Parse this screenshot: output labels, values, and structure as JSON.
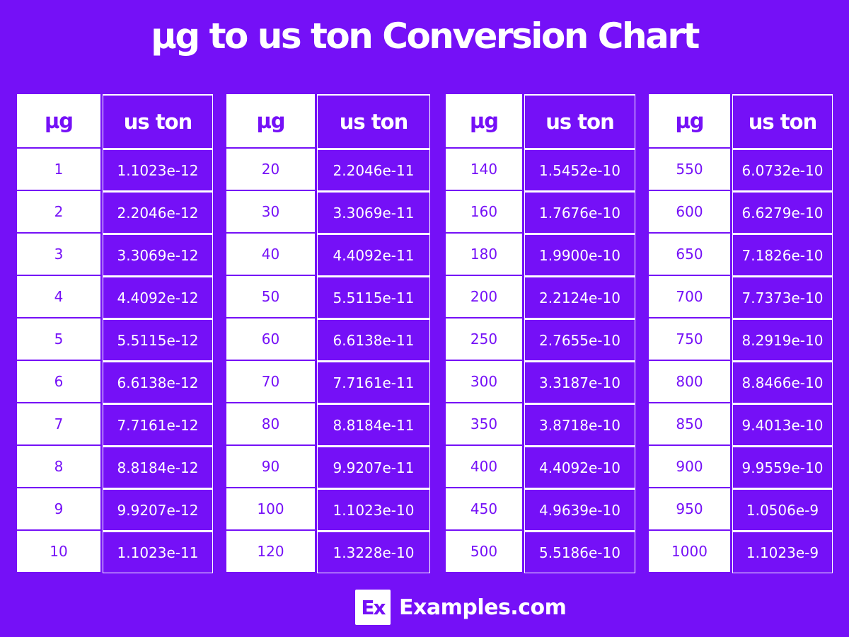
{
  "title": "µg to us ton Conversion Chart",
  "headers": {
    "from": "µg",
    "to": "us ton"
  },
  "tables": [
    {
      "rows": [
        {
          "ug": "1",
          "ton": "1.1023e-12"
        },
        {
          "ug": "2",
          "ton": "2.2046e-12"
        },
        {
          "ug": "3",
          "ton": "3.3069e-12"
        },
        {
          "ug": "4",
          "ton": "4.4092e-12"
        },
        {
          "ug": "5",
          "ton": "5.5115e-12"
        },
        {
          "ug": "6",
          "ton": "6.6138e-12"
        },
        {
          "ug": "7",
          "ton": "7.7161e-12"
        },
        {
          "ug": "8",
          "ton": "8.8184e-12"
        },
        {
          "ug": "9",
          "ton": "9.9207e-12"
        },
        {
          "ug": "10",
          "ton": "1.1023e-11"
        }
      ]
    },
    {
      "rows": [
        {
          "ug": "20",
          "ton": "2.2046e-11"
        },
        {
          "ug": "30",
          "ton": "3.3069e-11"
        },
        {
          "ug": "40",
          "ton": "4.4092e-11"
        },
        {
          "ug": "50",
          "ton": "5.5115e-11"
        },
        {
          "ug": "60",
          "ton": "6.6138e-11"
        },
        {
          "ug": "70",
          "ton": "7.7161e-11"
        },
        {
          "ug": "80",
          "ton": "8.8184e-11"
        },
        {
          "ug": "90",
          "ton": "9.9207e-11"
        },
        {
          "ug": "100",
          "ton": "1.1023e-10"
        },
        {
          "ug": "120",
          "ton": "1.3228e-10"
        }
      ]
    },
    {
      "rows": [
        {
          "ug": "140",
          "ton": "1.5452e-10"
        },
        {
          "ug": "160",
          "ton": "1.7676e-10"
        },
        {
          "ug": "180",
          "ton": "1.9900e-10"
        },
        {
          "ug": "200",
          "ton": "2.2124e-10"
        },
        {
          "ug": "250",
          "ton": "2.7655e-10"
        },
        {
          "ug": "300",
          "ton": "3.3187e-10"
        },
        {
          "ug": "350",
          "ton": "3.8718e-10"
        },
        {
          "ug": "400",
          "ton": "4.4092e-10"
        },
        {
          "ug": "450",
          "ton": "4.9639e-10"
        },
        {
          "ug": "500",
          "ton": "5.5186e-10"
        }
      ]
    },
    {
      "rows": [
        {
          "ug": "550",
          "ton": "6.0732e-10"
        },
        {
          "ug": "600",
          "ton": "6.6279e-10"
        },
        {
          "ug": "650",
          "ton": "7.1826e-10"
        },
        {
          "ug": "700",
          "ton": "7.7373e-10"
        },
        {
          "ug": "750",
          "ton": "8.2919e-10"
        },
        {
          "ug": "800",
          "ton": "8.8466e-10"
        },
        {
          "ug": "850",
          "ton": "9.4013e-10"
        },
        {
          "ug": "900",
          "ton": "9.9559e-10"
        },
        {
          "ug": "950",
          "ton": "1.0506e-9"
        },
        {
          "ug": "1000",
          "ton": "1.1023e-9"
        }
      ]
    }
  ],
  "footer": {
    "logo_mark": "Ex",
    "brand": "Examples.com"
  },
  "colors": {
    "background": "#7510f7",
    "cell_light": "#ffffff",
    "text_light": "#ffffff"
  },
  "chart_data": {
    "type": "table",
    "title": "µg to us ton Conversion Chart",
    "columns": [
      "µg",
      "us ton"
    ],
    "rows": [
      [
        "1",
        "1.1023e-12"
      ],
      [
        "2",
        "2.2046e-12"
      ],
      [
        "3",
        "3.3069e-12"
      ],
      [
        "4",
        "4.4092e-12"
      ],
      [
        "5",
        "5.5115e-12"
      ],
      [
        "6",
        "6.6138e-12"
      ],
      [
        "7",
        "7.7161e-12"
      ],
      [
        "8",
        "8.8184e-12"
      ],
      [
        "9",
        "9.9207e-12"
      ],
      [
        "10",
        "1.1023e-11"
      ],
      [
        "20",
        "2.2046e-11"
      ],
      [
        "30",
        "3.3069e-11"
      ],
      [
        "40",
        "4.4092e-11"
      ],
      [
        "50",
        "5.5115e-11"
      ],
      [
        "60",
        "6.6138e-11"
      ],
      [
        "70",
        "7.7161e-11"
      ],
      [
        "80",
        "8.8184e-11"
      ],
      [
        "90",
        "9.9207e-11"
      ],
      [
        "100",
        "1.1023e-10"
      ],
      [
        "120",
        "1.3228e-10"
      ],
      [
        "140",
        "1.5452e-10"
      ],
      [
        "160",
        "1.7676e-10"
      ],
      [
        "180",
        "1.9900e-10"
      ],
      [
        "200",
        "2.2124e-10"
      ],
      [
        "250",
        "2.7655e-10"
      ],
      [
        "300",
        "3.3187e-10"
      ],
      [
        "350",
        "3.8718e-10"
      ],
      [
        "400",
        "4.4092e-10"
      ],
      [
        "450",
        "4.9639e-10"
      ],
      [
        "500",
        "5.5186e-10"
      ],
      [
        "550",
        "6.0732e-10"
      ],
      [
        "600",
        "6.6279e-10"
      ],
      [
        "650",
        "7.1826e-10"
      ],
      [
        "700",
        "7.7373e-10"
      ],
      [
        "750",
        "8.2919e-10"
      ],
      [
        "800",
        "8.8466e-10"
      ],
      [
        "850",
        "9.4013e-10"
      ],
      [
        "900",
        "9.9559e-10"
      ],
      [
        "950",
        "1.0506e-9"
      ],
      [
        "1000",
        "1.1023e-9"
      ]
    ]
  }
}
